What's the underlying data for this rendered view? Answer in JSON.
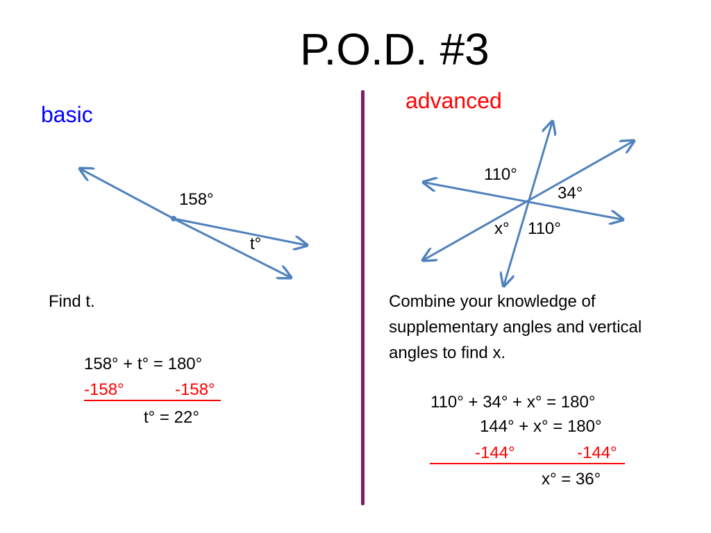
{
  "slide": {
    "title": "P.O.D. #3"
  },
  "basic": {
    "heading": "basic",
    "diagram": {
      "angle_label": "158°",
      "t_label": "t°"
    },
    "prompt": "Find t.",
    "work": {
      "line1": "158° + t° = 180°",
      "line2_left": "-158°",
      "line2_right": "-158°",
      "line3": "t° = 22°"
    }
  },
  "advanced": {
    "heading": "advanced",
    "diagram": {
      "label_110_top": "110°",
      "label_34": "34°",
      "label_x": "x°",
      "label_110_bottom": "110°"
    },
    "prompt_lines": [
      "Combine your knowledge of",
      "supplementary angles and vertical",
      "angles to find x."
    ],
    "work": {
      "line1": "110° + 34° + x° = 180°",
      "line2": "144° + x° = 180°",
      "line3_left": "-144°",
      "line3_right": "-144°",
      "line4": "x° = 36°"
    }
  },
  "colors": {
    "line_blue": "#4f81bd",
    "heading_blue": "#0000ff",
    "accent_red": "#ff0000",
    "divider_purple": "#7a1f6e"
  }
}
